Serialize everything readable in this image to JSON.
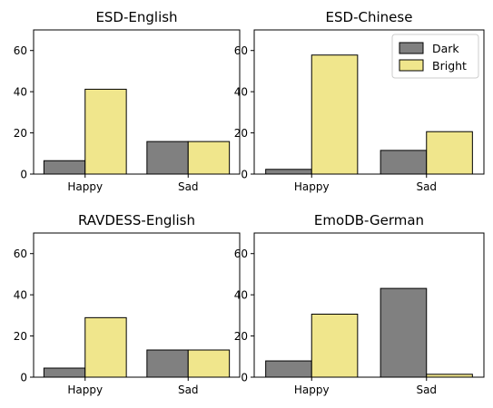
{
  "colors": {
    "Dark": "#808080",
    "Bright": "#f0e68c",
    "edge": "#000000"
  },
  "chart_data": [
    {
      "type": "bar",
      "title": "ESD-English",
      "categories": [
        "Happy",
        "Sad"
      ],
      "series": [
        {
          "name": "Dark",
          "values": [
            6.5,
            15.8
          ]
        },
        {
          "name": "Bright",
          "values": [
            41.2,
            15.8
          ]
        }
      ],
      "ylim": [
        0,
        70
      ],
      "yticks": [
        0,
        20,
        40,
        60
      ],
      "legend": null
    },
    {
      "type": "bar",
      "title": "ESD-Chinese",
      "categories": [
        "Happy",
        "Sad"
      ],
      "series": [
        {
          "name": "Dark",
          "values": [
            2.3,
            11.5
          ]
        },
        {
          "name": "Bright",
          "values": [
            57.8,
            20.6
          ]
        }
      ],
      "ylim": [
        0,
        70
      ],
      "yticks": [
        0,
        20,
        40,
        60
      ],
      "legend": "upper right"
    },
    {
      "type": "bar",
      "title": "RAVDESS-English",
      "categories": [
        "Happy",
        "Sad"
      ],
      "series": [
        {
          "name": "Dark",
          "values": [
            4.4,
            13.2
          ]
        },
        {
          "name": "Bright",
          "values": [
            28.9,
            13.2
          ]
        }
      ],
      "ylim": [
        0,
        70
      ],
      "yticks": [
        0,
        20,
        40,
        60
      ],
      "legend": null
    },
    {
      "type": "bar",
      "title": "EmoDB-German",
      "categories": [
        "Happy",
        "Sad"
      ],
      "series": [
        {
          "name": "Dark",
          "values": [
            7.9,
            43.1
          ]
        },
        {
          "name": "Bright",
          "values": [
            30.6,
            1.4
          ]
        }
      ],
      "ylim": [
        0,
        70
      ],
      "yticks": [
        0,
        20,
        40,
        60
      ],
      "legend": null
    }
  ]
}
